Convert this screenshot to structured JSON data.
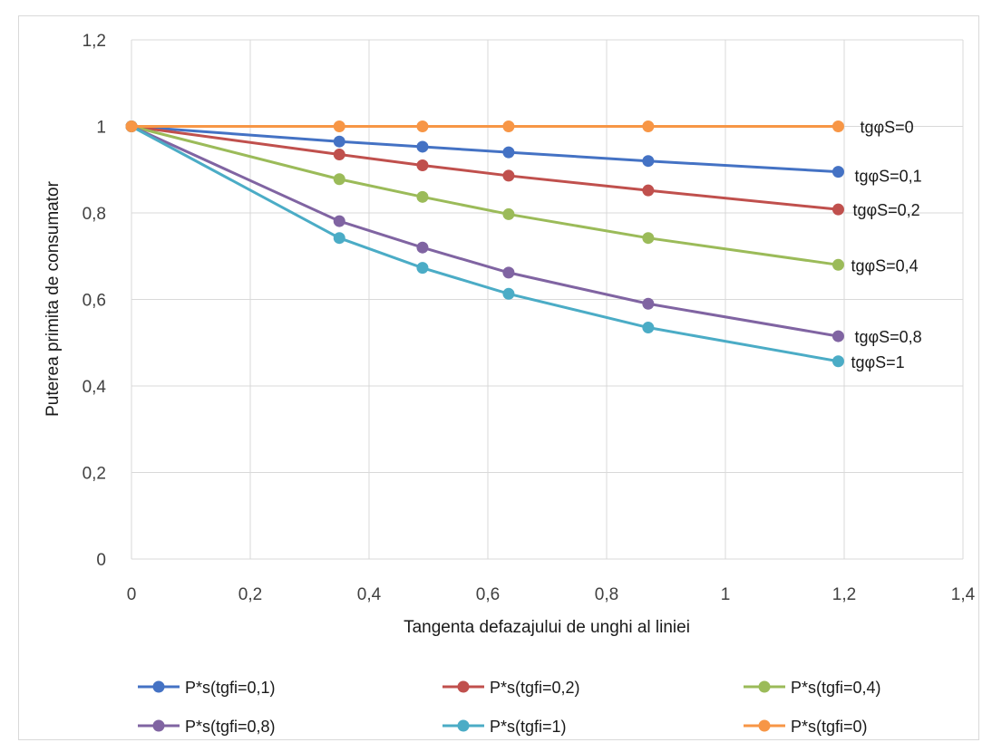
{
  "chart_data": {
    "type": "line",
    "xlabel": "Tangenta defazajului de unghi al liniei",
    "ylabel": "Puterea primita de consumator",
    "xlim": [
      0,
      1.4
    ],
    "ylim": [
      0,
      1.2
    ],
    "x_ticks": [
      "0",
      "0,2",
      "0,4",
      "0,6",
      "0,8",
      "1",
      "1,2",
      "1,4"
    ],
    "y_ticks": [
      "0",
      "0,2",
      "0,4",
      "0,6",
      "0,8",
      "1",
      "1,2"
    ],
    "x_tick_values": [
      0,
      0.2,
      0.4,
      0.6,
      0.8,
      1.0,
      1.2,
      1.4
    ],
    "y_tick_values": [
      0,
      0.2,
      0.4,
      0.6,
      0.8,
      1.0,
      1.2
    ],
    "grid": "vertical and horizontal",
    "legend_position": "bottom",
    "x": [
      0,
      0.35,
      0.49,
      0.635,
      0.87,
      1.19
    ],
    "series": [
      {
        "name": "P*s(tgfi=0,1)",
        "color": "#4472c4",
        "end_label": "tgφS=0,1",
        "values": [
          1,
          0.965,
          0.953,
          0.94,
          0.92,
          0.895
        ]
      },
      {
        "name": "P*s(tgfi=0,2)",
        "color": "#c0504d",
        "end_label": "tgφS=0,2",
        "values": [
          1,
          0.935,
          0.91,
          0.886,
          0.852,
          0.808
        ]
      },
      {
        "name": "P*s(tgfi=0,4)",
        "color": "#9bbb59",
        "end_label": "tgφS=0,4",
        "values": [
          1,
          0.878,
          0.837,
          0.797,
          0.742,
          0.68
        ]
      },
      {
        "name": "P*s(tgfi=0,8)",
        "color": "#8064a2",
        "end_label": "tgφS=0,8",
        "values": [
          1,
          0.781,
          0.72,
          0.662,
          0.59,
          0.515
        ]
      },
      {
        "name": "P*s(tgfi=1)",
        "color": "#4bacc6",
        "end_label": "tgφS=1",
        "values": [
          1,
          0.742,
          0.673,
          0.613,
          0.535,
          0.457
        ]
      },
      {
        "name": "P*s(tgfi=0)",
        "color": "#f79646",
        "end_label": "tgφS=0",
        "values": [
          1,
          1,
          1,
          1,
          1,
          1
        ]
      }
    ],
    "grid_color": "#d9d9d9"
  }
}
